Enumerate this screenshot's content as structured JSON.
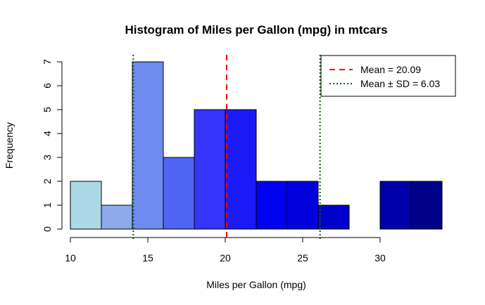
{
  "chart_data": {
    "type": "bar",
    "title": "Histogram of Miles per Gallon (mpg) in mtcars",
    "xlabel": "Miles per Gallon (mpg)",
    "ylabel": "Frequency",
    "bins": [
      {
        "from": 10,
        "to": 12,
        "count": 2,
        "color": "#add8e6"
      },
      {
        "from": 12,
        "to": 14,
        "count": 1,
        "color": "#8eaaec"
      },
      {
        "from": 14,
        "to": 16,
        "count": 7,
        "color": "#6f8af0"
      },
      {
        "from": 16,
        "to": 18,
        "count": 3,
        "color": "#5064f4"
      },
      {
        "from": 18,
        "to": 20,
        "count": 5,
        "color": "#3434fa"
      },
      {
        "from": 20,
        "to": 22,
        "count": 5,
        "color": "#1a1af8"
      },
      {
        "from": 22,
        "to": 24,
        "count": 2,
        "color": "#0000f0"
      },
      {
        "from": 24,
        "to": 26,
        "count": 2,
        "color": "#0000dd"
      },
      {
        "from": 26,
        "to": 28,
        "count": 1,
        "color": "#0000cc"
      },
      {
        "from": 28,
        "to": 30,
        "count": 0,
        "color": "#0000bb"
      },
      {
        "from": 30,
        "to": 32,
        "count": 2,
        "color": "#0000aa"
      },
      {
        "from": 32,
        "to": 34,
        "count": 2,
        "color": "#00008b"
      }
    ],
    "xlim": [
      10,
      34
    ],
    "ylim": [
      0,
      7
    ],
    "xticks": [
      10,
      15,
      20,
      25,
      30
    ],
    "yticks": [
      0,
      1,
      2,
      3,
      4,
      5,
      6,
      7
    ],
    "mean": 20.09,
    "sd": 6.03,
    "mean_line_color": "#ff0000",
    "sd_line_color": "#006400",
    "legend": {
      "position": "top-right",
      "entries": [
        {
          "label": "Mean = 20.09",
          "color": "#ff0000",
          "style": "dashed"
        },
        {
          "label": "Mean ± SD = 6.03",
          "color": "#006400",
          "style": "dotted"
        }
      ]
    }
  }
}
